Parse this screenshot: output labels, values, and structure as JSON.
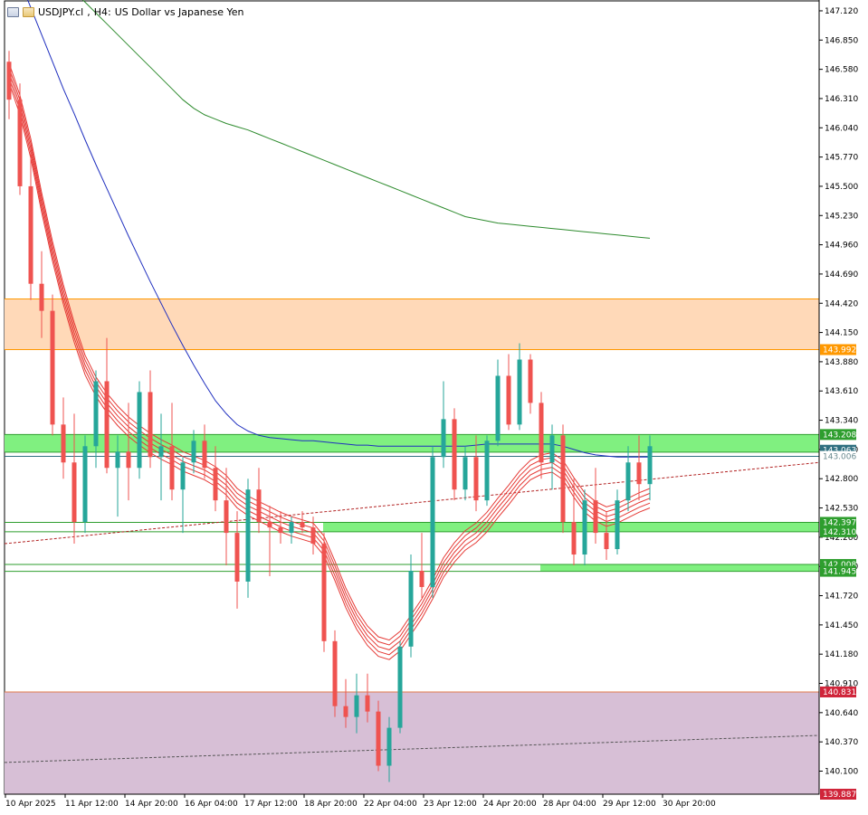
{
  "header": {
    "symbol": "USDJPY.cl",
    "timeframe": "H4:",
    "description": "US Dollar vs Japanese Yen"
  },
  "colors": {
    "bull": "#26a69a",
    "bear": "#ef5350",
    "ribbon": "#e53935",
    "sma_blue": "#1f2fbf",
    "sma_green": "#2e8b2e",
    "resistance_zone": "#ffd9b8",
    "support_zone": "#d7bfd6",
    "green_band": "#80f080"
  },
  "chart_data": {
    "type": "candlestick",
    "title": "",
    "ylim": [
      139.887,
      147.22
    ],
    "y_ticks": [
      "147.120",
      "146.850",
      "146.580",
      "146.310",
      "146.040",
      "145.770",
      "145.500",
      "145.230",
      "144.960",
      "144.690",
      "144.420",
      "144.150",
      "143.880",
      "143.610",
      "143.340",
      "143.070",
      "142.800",
      "142.530",
      "142.260",
      "141.990",
      "141.720",
      "141.450",
      "141.180",
      "140.910",
      "140.640",
      "140.370",
      "140.100"
    ],
    "x_ticks": [
      "10 Apr 2025",
      "11 Apr 12:00",
      "14 Apr 20:00",
      "16 Apr 04:00",
      "17 Apr 12:00",
      "18 Apr 20:00",
      "22 Apr 04:00",
      "23 Apr 12:00",
      "24 Apr 20:00",
      "28 Apr 04:00",
      "29 Apr 12:00",
      "30 Apr 20:00"
    ],
    "price_tags": [
      {
        "label": "143.992",
        "price": 143.992,
        "bg": "#ff9800",
        "fg": "#ffffff"
      },
      {
        "label": "143.208",
        "price": 143.208,
        "bg": "#2e9e2e",
        "fg": "#ffffff"
      },
      {
        "label": "143.063",
        "price": 143.063,
        "bg": "#2f6f80",
        "fg": "#ffffff"
      },
      {
        "label": "143.006",
        "price": 143.006,
        "bg": "#ffffff",
        "fg": "#6a8a90"
      },
      {
        "label": "142.397",
        "price": 142.397,
        "bg": "#2e9e2e",
        "fg": "#ffffff"
      },
      {
        "label": "142.310",
        "price": 142.31,
        "bg": "#2e9e2e",
        "fg": "#ffffff"
      },
      {
        "label": "142.008",
        "price": 142.008,
        "bg": "#2e9e2e",
        "fg": "#ffffff"
      },
      {
        "label": "141.945",
        "price": 141.945,
        "bg": "#2e9e2e",
        "fg": "#ffffff"
      },
      {
        "label": "140.831",
        "price": 140.831,
        "bg": "#d0253a",
        "fg": "#ffffff"
      },
      {
        "label": "139.887",
        "price": 139.887,
        "bg": "#d0253a",
        "fg": "#ffffff"
      }
    ],
    "zones": [
      {
        "name": "resistance-zone",
        "from": 143.992,
        "to": 144.46,
        "fill": "#ffd9b8",
        "edge": "#ff9800"
      },
      {
        "name": "support-zone",
        "from": 139.887,
        "to": 140.831,
        "fill": "#d7bfd6",
        "edge": "#e07a4a"
      },
      {
        "name": "green-band-upper",
        "from": 143.045,
        "to": 143.208,
        "fill": "#80f080",
        "edge": "#2e9e2e"
      }
    ],
    "h_lines": [
      {
        "name": "line-143006",
        "price": 143.006,
        "color": "#2f6f80",
        "width": 1
      },
      {
        "name": "line-142397",
        "price": 142.397,
        "color": "#2e9e2e",
        "width": 1
      },
      {
        "name": "line-142310",
        "price": 142.31,
        "color": "#2e9e2e",
        "width": 1
      },
      {
        "name": "line-142008",
        "price": 142.008,
        "color": "#2e9e2e",
        "width": 1
      },
      {
        "name": "line-141945",
        "price": 141.945,
        "color": "#2e9e2e",
        "width": 1
      }
    ],
    "candles": [
      [
        146.65,
        146.75,
        146.12,
        146.3
      ],
      [
        146.3,
        146.45,
        145.42,
        145.5
      ],
      [
        145.5,
        145.8,
        144.45,
        144.6
      ],
      [
        144.6,
        144.9,
        144.1,
        144.35
      ],
      [
        144.35,
        144.5,
        143.2,
        143.3
      ],
      [
        143.3,
        143.55,
        142.8,
        142.95
      ],
      [
        142.95,
        143.4,
        142.2,
        142.4
      ],
      [
        142.4,
        143.2,
        142.3,
        143.1
      ],
      [
        143.1,
        143.8,
        142.9,
        143.7
      ],
      [
        143.7,
        144.1,
        142.85,
        142.9
      ],
      [
        142.9,
        143.2,
        142.45,
        143.05
      ],
      [
        143.05,
        143.5,
        142.6,
        142.9
      ],
      [
        142.9,
        143.7,
        142.8,
        143.6
      ],
      [
        143.6,
        143.8,
        142.9,
        143.0
      ],
      [
        143.0,
        143.4,
        142.6,
        143.1
      ],
      [
        143.1,
        143.5,
        142.6,
        142.7
      ],
      [
        142.7,
        143.0,
        142.3,
        142.95
      ],
      [
        142.95,
        143.25,
        142.85,
        143.15
      ],
      [
        143.15,
        143.3,
        142.8,
        142.9
      ],
      [
        142.9,
        143.1,
        142.5,
        142.6
      ],
      [
        142.6,
        142.9,
        142.0,
        142.3
      ],
      [
        142.3,
        142.5,
        141.6,
        141.85
      ],
      [
        141.85,
        142.8,
        141.7,
        142.7
      ],
      [
        142.7,
        142.9,
        142.3,
        142.4
      ],
      [
        142.4,
        142.55,
        141.9,
        142.35
      ],
      [
        142.35,
        142.5,
        142.2,
        142.3
      ],
      [
        142.3,
        142.45,
        142.2,
        142.4
      ],
      [
        142.4,
        142.5,
        142.3,
        142.35
      ],
      [
        142.35,
        142.45,
        142.1,
        142.2
      ],
      [
        142.2,
        142.3,
        141.2,
        141.3
      ],
      [
        141.3,
        141.4,
        140.6,
        140.7
      ],
      [
        140.7,
        140.95,
        140.5,
        140.6
      ],
      [
        140.6,
        141.0,
        140.45,
        140.8
      ],
      [
        140.8,
        141.0,
        140.55,
        140.65
      ],
      [
        140.65,
        140.75,
        140.1,
        140.15
      ],
      [
        140.15,
        140.6,
        140.0,
        140.5
      ],
      [
        140.5,
        141.3,
        140.45,
        141.25
      ],
      [
        141.25,
        142.1,
        141.15,
        141.95
      ],
      [
        141.95,
        142.3,
        141.7,
        141.8
      ],
      [
        141.8,
        143.1,
        141.7,
        143.0
      ],
      [
        143.0,
        143.7,
        142.9,
        143.35
      ],
      [
        143.35,
        143.45,
        142.6,
        142.7
      ],
      [
        142.7,
        143.1,
        142.6,
        143.0
      ],
      [
        143.0,
        143.2,
        142.5,
        142.6
      ],
      [
        142.6,
        143.2,
        142.55,
        143.15
      ],
      [
        143.15,
        143.9,
        143.1,
        143.75
      ],
      [
        143.75,
        143.95,
        143.25,
        143.3
      ],
      [
        143.3,
        144.05,
        143.25,
        143.9
      ],
      [
        143.9,
        143.95,
        143.4,
        143.5
      ],
      [
        143.5,
        143.6,
        142.8,
        142.95
      ],
      [
        142.95,
        143.3,
        142.7,
        143.2
      ],
      [
        143.2,
        143.3,
        142.3,
        142.4
      ],
      [
        142.4,
        142.8,
        142.0,
        142.1
      ],
      [
        142.1,
        142.7,
        142.0,
        142.6
      ],
      [
        142.6,
        142.9,
        142.2,
        142.3
      ],
      [
        142.3,
        142.5,
        142.05,
        142.15
      ],
      [
        142.15,
        142.7,
        142.1,
        142.6
      ],
      [
        142.6,
        143.1,
        142.5,
        142.95
      ],
      [
        142.95,
        143.2,
        142.6,
        142.75
      ],
      [
        142.75,
        143.2,
        142.6,
        143.1
      ]
    ],
    "ribbon_ema": [
      146.55,
      146.25,
      145.85,
      145.35,
      144.9,
      144.5,
      144.15,
      143.85,
      143.65,
      143.5,
      143.38,
      143.28,
      143.2,
      143.13,
      143.07,
      143.02,
      142.96,
      142.92,
      142.88,
      142.82,
      142.74,
      142.62,
      142.55,
      142.5,
      142.45,
      142.4,
      142.36,
      142.33,
      142.3,
      142.18,
      141.95,
      141.7,
      141.5,
      141.35,
      141.25,
      141.22,
      141.3,
      141.45,
      141.6,
      141.78,
      141.98,
      142.12,
      142.23,
      142.3,
      142.4,
      142.53,
      142.65,
      142.78,
      142.88,
      142.93,
      142.95,
      142.88,
      142.72,
      142.58,
      142.5,
      142.45,
      142.48,
      142.53,
      142.58,
      142.62
    ],
    "sma_blue": [
      147.6,
      147.4,
      147.15,
      146.9,
      146.65,
      146.4,
      146.17,
      145.93,
      145.7,
      145.48,
      145.26,
      145.04,
      144.83,
      144.62,
      144.42,
      144.22,
      144.03,
      143.85,
      143.68,
      143.52,
      143.4,
      143.3,
      143.24,
      143.2,
      143.18,
      143.17,
      143.16,
      143.15,
      143.15,
      143.14,
      143.13,
      143.12,
      143.11,
      143.11,
      143.1,
      143.1,
      143.1,
      143.1,
      143.1,
      143.1,
      143.1,
      143.1,
      143.1,
      143.11,
      143.12,
      143.12,
      143.12,
      143.12,
      143.12,
      143.12,
      143.12,
      143.1,
      143.07,
      143.04,
      143.02,
      143.01,
      143.0,
      143.0,
      143.0,
      143.0
    ],
    "sma_green": [
      147.9,
      147.8,
      147.7,
      147.6,
      147.5,
      147.4,
      147.3,
      147.2,
      147.1,
      147.0,
      146.9,
      146.8,
      146.7,
      146.6,
      146.5,
      146.4,
      146.3,
      146.22,
      146.16,
      146.12,
      146.08,
      146.05,
      146.02,
      145.98,
      145.94,
      145.9,
      145.86,
      145.82,
      145.78,
      145.74,
      145.7,
      145.66,
      145.62,
      145.58,
      145.54,
      145.5,
      145.46,
      145.42,
      145.38,
      145.34,
      145.3,
      145.26,
      145.22,
      145.2,
      145.18,
      145.16,
      145.15,
      145.14,
      145.13,
      145.12,
      145.11,
      145.1,
      145.09,
      145.08,
      145.07,
      145.06,
      145.05,
      145.04,
      145.03,
      145.02
    ],
    "trendlines": [
      {
        "name": "trendline-upper",
        "p0": 142.2,
        "p1": 142.95,
        "color": "#b22222"
      },
      {
        "name": "trendline-lower",
        "p0": 140.18,
        "p1": 140.43,
        "color": "#555555"
      }
    ]
  }
}
